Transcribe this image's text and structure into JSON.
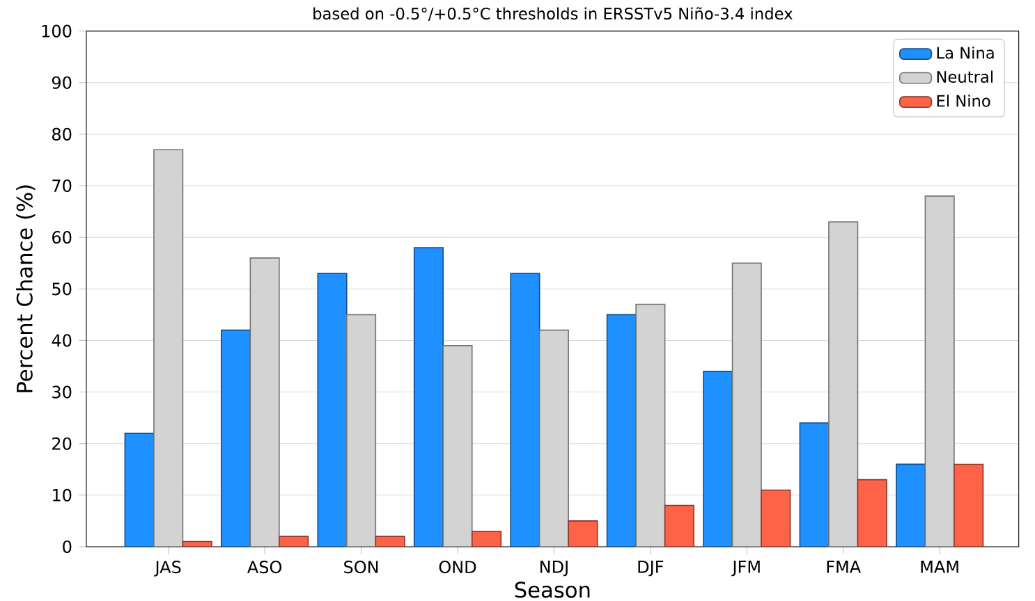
{
  "chart_data": {
    "type": "bar",
    "title": "based on -0.5°/+0.5°C thresholds in ERSSTv5 Niño-3.4 index",
    "xlabel": "Season",
    "ylabel": "Percent Chance (%)",
    "categories": [
      "JAS",
      "ASO",
      "SON",
      "OND",
      "NDJ",
      "DJF",
      "JFM",
      "FMA",
      "MAM"
    ],
    "series": [
      {
        "name": "La Nina",
        "color": "#1e90ff",
        "values": [
          22,
          42,
          53,
          58,
          53,
          45,
          34,
          24,
          16
        ]
      },
      {
        "name": "Neutral",
        "color": "#d3d3d3",
        "values": [
          77,
          56,
          45,
          39,
          42,
          47,
          55,
          63,
          68
        ]
      },
      {
        "name": "El Nino",
        "color": "#ff6347",
        "values": [
          1,
          2,
          2,
          3,
          5,
          8,
          11,
          13,
          16
        ]
      }
    ],
    "ylim": [
      0,
      100
    ],
    "yticks": [
      0,
      10,
      20,
      30,
      40,
      50,
      60,
      70,
      80,
      90,
      100
    ],
    "grid": "y",
    "legend": "top right"
  }
}
